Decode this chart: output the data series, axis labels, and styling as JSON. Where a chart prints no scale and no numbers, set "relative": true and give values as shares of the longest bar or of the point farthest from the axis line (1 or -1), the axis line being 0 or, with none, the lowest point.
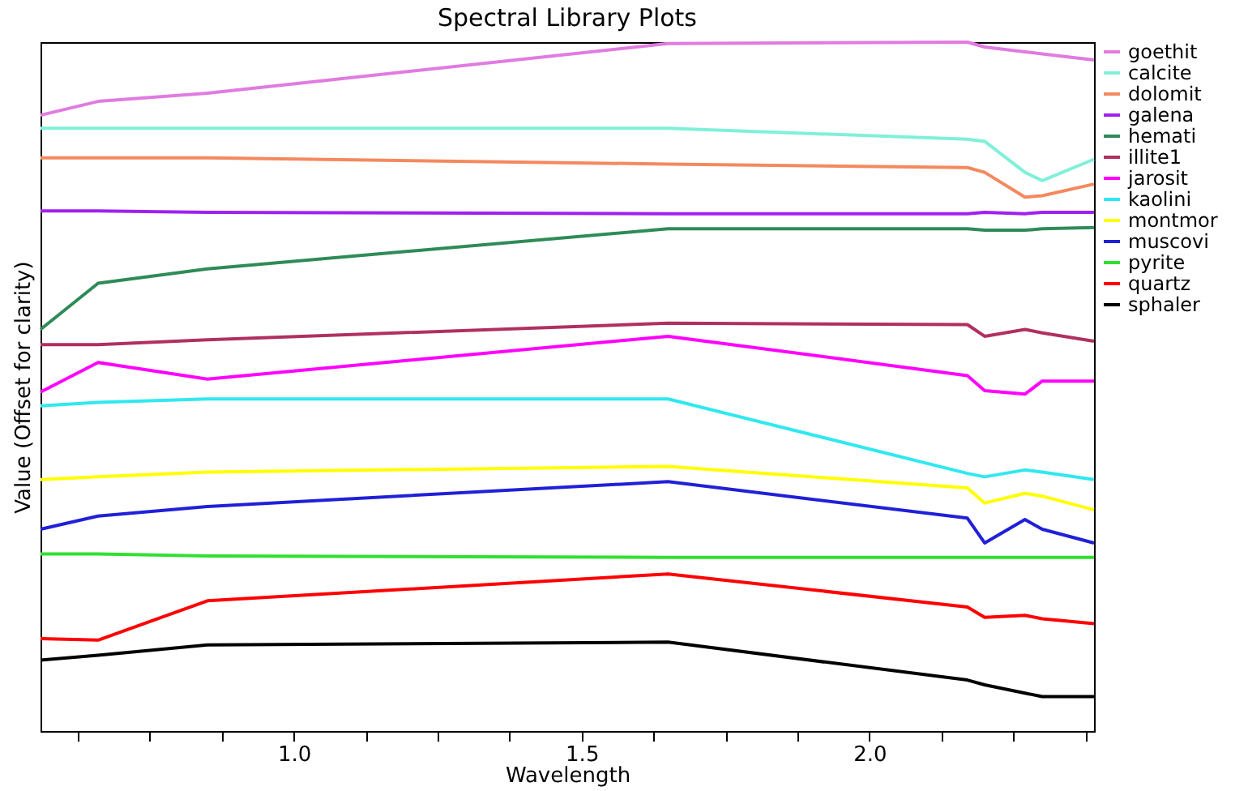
{
  "chart_data": {
    "type": "line",
    "title": "Spectral Library Plots",
    "xlabel": "Wavelength",
    "ylabel": "Value (Offset for clarity)",
    "relative": true,
    "x": [
      0.56,
      0.66,
      0.85,
      1.65,
      2.17,
      2.2,
      2.27,
      2.3,
      2.39
    ],
    "xlim": [
      0.56,
      2.39
    ],
    "xticks": [
      {
        "value": 0.625,
        "label": null
      },
      {
        "value": 0.75,
        "label": null
      },
      {
        "value": 0.875,
        "label": null
      },
      {
        "value": 1.0,
        "label": "1.0"
      },
      {
        "value": 1.125,
        "label": null
      },
      {
        "value": 1.25,
        "label": null
      },
      {
        "value": 1.375,
        "label": null
      },
      {
        "value": 1.5,
        "label": "1.5"
      },
      {
        "value": 1.625,
        "label": null
      },
      {
        "value": 1.75,
        "label": null
      },
      {
        "value": 1.875,
        "label": null
      },
      {
        "value": 2.0,
        "label": "2.0"
      },
      {
        "value": 2.125,
        "label": null
      },
      {
        "value": 2.25,
        "label": null
      },
      {
        "value": 2.375,
        "label": null
      }
    ],
    "legend": "right",
    "marker": "none",
    "line_style": "solid",
    "grid": false,
    "series": [
      {
        "name": "goethit",
        "color": "#e07be0",
        "values": [
          0.894,
          0.914,
          0.926,
          0.998,
          1.0,
          0.993,
          0.986,
          0.983,
          0.974
        ]
      },
      {
        "name": "calcite",
        "color": "#80f0d8",
        "values": [
          0.875,
          0.875,
          0.875,
          0.875,
          0.859,
          0.856,
          0.811,
          0.799,
          0.83
        ]
      },
      {
        "name": "dolomit",
        "color": "#f4895f",
        "values": [
          0.832,
          0.832,
          0.832,
          0.823,
          0.818,
          0.811,
          0.775,
          0.777,
          0.794
        ]
      },
      {
        "name": "galena",
        "color": "#a020f0",
        "values": [
          0.755,
          0.755,
          0.753,
          0.751,
          0.751,
          0.753,
          0.751,
          0.753,
          0.753
        ]
      },
      {
        "name": "hemati",
        "color": "#2e8b57",
        "values": [
          0.583,
          0.65,
          0.671,
          0.729,
          0.729,
          0.727,
          0.727,
          0.729,
          0.731
        ]
      },
      {
        "name": "illite1",
        "color": "#b03060",
        "values": [
          0.561,
          0.561,
          0.568,
          0.592,
          0.59,
          0.573,
          0.583,
          0.578,
          0.566
        ]
      },
      {
        "name": "jarosit",
        "color": "#ff00ff",
        "values": [
          0.492,
          0.535,
          0.511,
          0.573,
          0.516,
          0.494,
          0.489,
          0.508,
          0.508
        ]
      },
      {
        "name": "kaolini",
        "color": "#30e8f0",
        "values": [
          0.472,
          0.477,
          0.482,
          0.482,
          0.374,
          0.369,
          0.379,
          0.376,
          0.365
        ]
      },
      {
        "name": "montmor",
        "color": "#ffff00",
        "values": [
          0.365,
          0.369,
          0.376,
          0.384,
          0.353,
          0.331,
          0.345,
          0.341,
          0.321
        ]
      },
      {
        "name": "muscovi",
        "color": "#2020d8",
        "values": [
          0.293,
          0.312,
          0.326,
          0.362,
          0.309,
          0.273,
          0.307,
          0.293,
          0.273
        ]
      },
      {
        "name": "pyrite",
        "color": "#30e030",
        "values": [
          0.257,
          0.257,
          0.254,
          0.252,
          0.252,
          0.252,
          0.252,
          0.252,
          0.252
        ]
      },
      {
        "name": "quartz",
        "color": "#ff0000",
        "values": [
          0.134,
          0.132,
          0.189,
          0.228,
          0.18,
          0.165,
          0.168,
          0.163,
          0.156
        ]
      },
      {
        "name": "sphaler",
        "color": "#000000",
        "values": [
          0.103,
          0.11,
          0.125,
          0.129,
          0.074,
          0.067,
          0.055,
          0.05,
          0.05
        ]
      }
    ]
  }
}
